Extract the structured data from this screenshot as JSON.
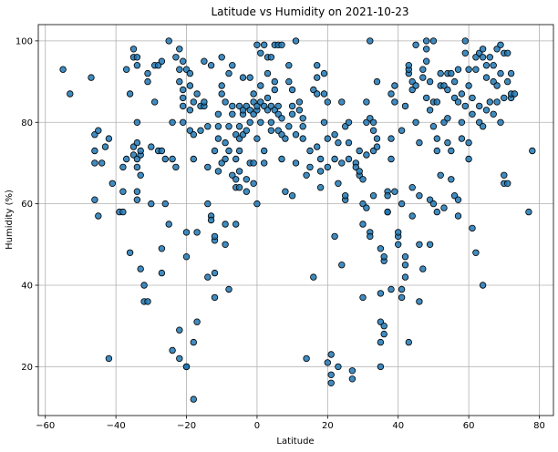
{
  "chart_data": {
    "type": "scatter",
    "title": "Latitude vs Humidity on 2021-10-23",
    "xlabel": "Latitude",
    "ylabel": "Humidity (%)",
    "xlim": [
      -62,
      84
    ],
    "ylim": [
      8,
      104
    ],
    "xticks": [
      -60,
      -40,
      -20,
      0,
      20,
      40,
      60,
      80
    ],
    "yticks": [
      20,
      40,
      60,
      80,
      100
    ],
    "grid": true,
    "marker_color": "#1f77b4",
    "marker_edge": "#000000",
    "points": [
      [
        -55,
        93
      ],
      [
        -53,
        87
      ],
      [
        -47,
        91
      ],
      [
        -46,
        77
      ],
      [
        -46,
        73
      ],
      [
        -46,
        70
      ],
      [
        -46,
        61
      ],
      [
        -45,
        57
      ],
      [
        -45,
        78
      ],
      [
        -44,
        70
      ],
      [
        -43,
        74
      ],
      [
        -42,
        76
      ],
      [
        -42,
        22
      ],
      [
        -41,
        65
      ],
      [
        -39,
        58
      ],
      [
        -38,
        58
      ],
      [
        -38,
        63
      ],
      [
        -38,
        69
      ],
      [
        -37,
        93
      ],
      [
        -37,
        71
      ],
      [
        -36,
        48
      ],
      [
        -36,
        87
      ],
      [
        -35,
        96
      ],
      [
        -35,
        98
      ],
      [
        -35,
        74
      ],
      [
        -35,
        72
      ],
      [
        -34,
        94
      ],
      [
        -34,
        96
      ],
      [
        -34,
        80
      ],
      [
        -34,
        75
      ],
      [
        -34,
        71
      ],
      [
        -34,
        69
      ],
      [
        -34,
        63
      ],
      [
        -34,
        61
      ],
      [
        -33,
        44
      ],
      [
        -33,
        72
      ],
      [
        -33,
        73
      ],
      [
        -33,
        67
      ],
      [
        -32,
        36
      ],
      [
        -32,
        40
      ],
      [
        -31,
        36
      ],
      [
        -31,
        90
      ],
      [
        -31,
        92
      ],
      [
        -30,
        60
      ],
      [
        -30,
        74
      ],
      [
        -29,
        94
      ],
      [
        -29,
        85
      ],
      [
        -28,
        94
      ],
      [
        -28,
        73
      ],
      [
        -27,
        49
      ],
      [
        -27,
        43
      ],
      [
        -27,
        73
      ],
      [
        -27,
        95
      ],
      [
        -26,
        71
      ],
      [
        -26,
        60
      ],
      [
        -25,
        100
      ],
      [
        -25,
        55
      ],
      [
        -24,
        24
      ],
      [
        -24,
        80
      ],
      [
        -24,
        71
      ],
      [
        -23,
        96
      ],
      [
        -23,
        69
      ],
      [
        -22,
        29
      ],
      [
        -22,
        93
      ],
      [
        -22,
        90
      ],
      [
        -22,
        98
      ],
      [
        -22,
        22
      ],
      [
        -21,
        95
      ],
      [
        -21,
        84
      ],
      [
        -21,
        80
      ],
      [
        -21,
        86
      ],
      [
        -21,
        88
      ],
      [
        -20,
        93
      ],
      [
        -20,
        53
      ],
      [
        -20,
        20
      ],
      [
        -20,
        20
      ],
      [
        -20,
        47
      ],
      [
        -19,
        83
      ],
      [
        -19,
        89
      ],
      [
        -19,
        92
      ],
      [
        -19,
        78
      ],
      [
        -18,
        85
      ],
      [
        -18,
        77
      ],
      [
        -18,
        71
      ],
      [
        -18,
        26
      ],
      [
        -18,
        12
      ],
      [
        -17,
        53
      ],
      [
        -17,
        87
      ],
      [
        -17,
        31
      ],
      [
        -16,
        84
      ],
      [
        -16,
        78
      ],
      [
        -15,
        84
      ],
      [
        -15,
        85
      ],
      [
        -15,
        95
      ],
      [
        -14,
        69
      ],
      [
        -14,
        79
      ],
      [
        -14,
        42
      ],
      [
        -14,
        60
      ],
      [
        -13,
        94
      ],
      [
        -13,
        57
      ],
      [
        -13,
        56
      ],
      [
        -12,
        51
      ],
      [
        -12,
        52
      ],
      [
        -12,
        37
      ],
      [
        -12,
        43
      ],
      [
        -12,
        73
      ],
      [
        -11,
        82
      ],
      [
        -11,
        79
      ],
      [
        -11,
        76
      ],
      [
        -11,
        68
      ],
      [
        -10,
        70
      ],
      [
        -10,
        89
      ],
      [
        -10,
        87
      ],
      [
        -10,
        96
      ],
      [
        -9,
        71
      ],
      [
        -9,
        85
      ],
      [
        -9,
        75
      ],
      [
        -9,
        50
      ],
      [
        -9,
        55
      ],
      [
        -8,
        79
      ],
      [
        -8,
        73
      ],
      [
        -8,
        92
      ],
      [
        -8,
        39
      ],
      [
        -7,
        94
      ],
      [
        -7,
        84
      ],
      [
        -7,
        82
      ],
      [
        -7,
        67
      ],
      [
        -6,
        66
      ],
      [
        -6,
        64
      ],
      [
        -6,
        55
      ],
      [
        -6,
        71
      ],
      [
        -6,
        77
      ],
      [
        -5,
        84
      ],
      [
        -5,
        79
      ],
      [
        -5,
        76
      ],
      [
        -5,
        73
      ],
      [
        -5,
        68
      ],
      [
        -5,
        64
      ],
      [
        -4,
        82
      ],
      [
        -4,
        83
      ],
      [
        -4,
        77
      ],
      [
        -4,
        91
      ],
      [
        -3,
        84
      ],
      [
        -3,
        78
      ],
      [
        -3,
        63
      ],
      [
        -3,
        66
      ],
      [
        -2,
        80
      ],
      [
        -2,
        70
      ],
      [
        -2,
        83
      ],
      [
        -2,
        91
      ],
      [
        -1,
        87
      ],
      [
        -1,
        85
      ],
      [
        -1,
        82
      ],
      [
        -1,
        70
      ],
      [
        -1,
        65
      ],
      [
        0,
        76
      ],
      [
        0,
        60
      ],
      [
        0,
        83
      ],
      [
        0,
        84
      ],
      [
        0,
        99
      ],
      [
        1,
        97
      ],
      [
        1,
        85
      ],
      [
        1,
        80
      ],
      [
        1,
        89
      ],
      [
        2,
        84
      ],
      [
        2,
        70
      ],
      [
        2,
        73
      ],
      [
        2,
        99
      ],
      [
        3,
        92
      ],
      [
        3,
        96
      ],
      [
        3,
        83
      ],
      [
        3,
        86
      ],
      [
        4,
        84
      ],
      [
        4,
        80
      ],
      [
        4,
        78
      ],
      [
        4,
        96
      ],
      [
        5,
        88
      ],
      [
        5,
        83
      ],
      [
        5,
        99
      ],
      [
        5,
        90
      ],
      [
        6,
        82
      ],
      [
        6,
        78
      ],
      [
        6,
        84
      ],
      [
        6,
        99
      ],
      [
        7,
        99
      ],
      [
        7,
        77
      ],
      [
        7,
        71
      ],
      [
        7,
        81
      ],
      [
        8,
        63
      ],
      [
        8,
        76
      ],
      [
        9,
        79
      ],
      [
        9,
        94
      ],
      [
        9,
        90
      ],
      [
        10,
        62
      ],
      [
        10,
        82
      ],
      [
        10,
        88
      ],
      [
        10,
        84
      ],
      [
        11,
        100
      ],
      [
        11,
        77
      ],
      [
        11,
        70
      ],
      [
        12,
        83
      ],
      [
        12,
        85
      ],
      [
        13,
        81
      ],
      [
        13,
        79
      ],
      [
        13,
        76
      ],
      [
        14,
        22
      ],
      [
        14,
        67
      ],
      [
        15,
        69
      ],
      [
        15,
        73
      ],
      [
        16,
        42
      ],
      [
        16,
        88
      ],
      [
        17,
        91
      ],
      [
        17,
        87
      ],
      [
        17,
        74
      ],
      [
        17,
        94
      ],
      [
        18,
        64
      ],
      [
        18,
        71
      ],
      [
        18,
        68
      ],
      [
        19,
        87
      ],
      [
        19,
        92
      ],
      [
        19,
        80
      ],
      [
        20,
        69
      ],
      [
        20,
        85
      ],
      [
        20,
        76
      ],
      [
        20,
        21
      ],
      [
        21,
        23
      ],
      [
        21,
        18
      ],
      [
        21,
        16
      ],
      [
        22,
        52
      ],
      [
        22,
        77
      ],
      [
        22,
        71
      ],
      [
        23,
        75
      ],
      [
        23,
        65
      ],
      [
        23,
        20
      ],
      [
        24,
        85
      ],
      [
        24,
        45
      ],
      [
        24,
        70
      ],
      [
        25,
        61
      ],
      [
        25,
        62
      ],
      [
        25,
        79
      ],
      [
        26,
        80
      ],
      [
        26,
        75
      ],
      [
        26,
        71
      ],
      [
        27,
        17
      ],
      [
        27,
        19
      ],
      [
        28,
        70
      ],
      [
        28,
        69
      ],
      [
        29,
        67
      ],
      [
        29,
        68
      ],
      [
        29,
        73
      ],
      [
        30,
        66
      ],
      [
        30,
        55
      ],
      [
        30,
        60
      ],
      [
        30,
        37
      ],
      [
        31,
        85
      ],
      [
        31,
        72
      ],
      [
        31,
        80
      ],
      [
        31,
        59
      ],
      [
        32,
        100
      ],
      [
        32,
        53
      ],
      [
        32,
        52
      ],
      [
        32,
        81
      ],
      [
        33,
        80
      ],
      [
        33,
        73
      ],
      [
        33,
        78
      ],
      [
        33,
        62
      ],
      [
        34,
        76
      ],
      [
        34,
        90
      ],
      [
        34,
        74
      ],
      [
        35,
        26
      ],
      [
        35,
        20
      ],
      [
        35,
        31
      ],
      [
        35,
        38
      ],
      [
        35,
        49
      ],
      [
        36,
        28
      ],
      [
        36,
        30
      ],
      [
        36,
        46
      ],
      [
        36,
        47
      ],
      [
        37,
        58
      ],
      [
        37,
        63
      ],
      [
        37,
        58
      ],
      [
        37,
        62
      ],
      [
        38,
        39
      ],
      [
        38,
        87
      ],
      [
        38,
        76
      ],
      [
        38,
        71
      ],
      [
        39,
        85
      ],
      [
        39,
        89
      ],
      [
        39,
        63
      ],
      [
        40,
        52
      ],
      [
        40,
        50
      ],
      [
        40,
        53
      ],
      [
        41,
        78
      ],
      [
        41,
        39
      ],
      [
        41,
        37
      ],
      [
        41,
        60
      ],
      [
        42,
        42
      ],
      [
        42,
        47
      ],
      [
        42,
        45
      ],
      [
        42,
        84
      ],
      [
        43,
        26
      ],
      [
        43,
        92
      ],
      [
        43,
        93
      ],
      [
        43,
        94
      ],
      [
        44,
        90
      ],
      [
        44,
        64
      ],
      [
        44,
        57
      ],
      [
        44,
        88
      ],
      [
        45,
        89
      ],
      [
        45,
        80
      ],
      [
        45,
        99
      ],
      [
        46,
        75
      ],
      [
        46,
        62
      ],
      [
        46,
        50
      ],
      [
        46,
        36
      ],
      [
        47,
        93
      ],
      [
        47,
        91
      ],
      [
        47,
        44
      ],
      [
        48,
        95
      ],
      [
        48,
        98
      ],
      [
        48,
        100
      ],
      [
        48,
        86
      ],
      [
        49,
        61
      ],
      [
        49,
        90
      ],
      [
        49,
        83
      ],
      [
        49,
        50
      ],
      [
        50,
        100
      ],
      [
        50,
        60
      ],
      [
        50,
        79
      ],
      [
        50,
        85
      ],
      [
        51,
        85
      ],
      [
        51,
        76
      ],
      [
        51,
        73
      ],
      [
        51,
        58
      ],
      [
        52,
        89
      ],
      [
        52,
        92
      ],
      [
        52,
        67
      ],
      [
        53,
        89
      ],
      [
        53,
        80
      ],
      [
        53,
        59
      ],
      [
        54,
        92
      ],
      [
        54,
        88
      ],
      [
        54,
        81
      ],
      [
        54,
        75
      ],
      [
        55,
        92
      ],
      [
        55,
        66
      ],
      [
        55,
        73
      ],
      [
        56,
        86
      ],
      [
        56,
        90
      ],
      [
        56,
        62
      ],
      [
        57,
        93
      ],
      [
        57,
        85
      ],
      [
        57,
        61
      ],
      [
        57,
        57
      ],
      [
        58,
        87
      ],
      [
        58,
        80
      ],
      [
        58,
        76
      ],
      [
        59,
        100
      ],
      [
        59,
        97
      ],
      [
        59,
        84
      ],
      [
        60,
        93
      ],
      [
        60,
        89
      ],
      [
        60,
        75
      ],
      [
        60,
        71
      ],
      [
        61,
        86
      ],
      [
        61,
        82
      ],
      [
        61,
        54
      ],
      [
        62,
        96
      ],
      [
        62,
        93
      ],
      [
        62,
        48
      ],
      [
        63,
        97
      ],
      [
        63,
        84
      ],
      [
        63,
        80
      ],
      [
        64,
        98
      ],
      [
        64,
        96
      ],
      [
        64,
        79
      ],
      [
        64,
        40
      ],
      [
        65,
        94
      ],
      [
        65,
        91
      ],
      [
        65,
        83
      ],
      [
        66,
        96
      ],
      [
        66,
        85
      ],
      [
        67,
        94
      ],
      [
        67,
        90
      ],
      [
        67,
        82
      ],
      [
        68,
        89
      ],
      [
        68,
        98
      ],
      [
        68,
        85
      ],
      [
        69,
        99
      ],
      [
        69,
        92
      ],
      [
        69,
        80
      ],
      [
        70,
        97
      ],
      [
        70,
        86
      ],
      [
        70,
        67
      ],
      [
        70,
        65
      ],
      [
        71,
        90
      ],
      [
        71,
        97
      ],
      [
        71,
        65
      ],
      [
        72,
        92
      ],
      [
        72,
        86
      ],
      [
        72,
        87
      ],
      [
        73,
        87
      ],
      [
        77,
        58
      ],
      [
        78,
        73
      ]
    ]
  }
}
